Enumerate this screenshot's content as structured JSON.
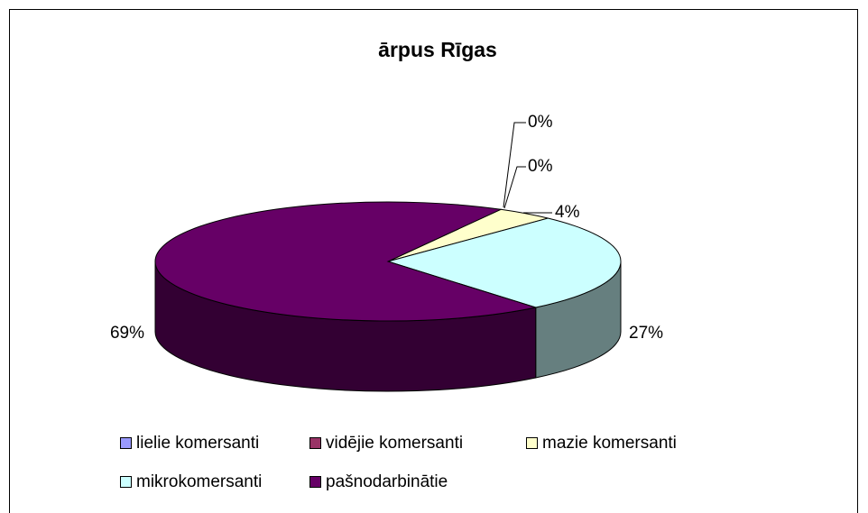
{
  "chart_data": {
    "type": "pie",
    "title": "ārpus Rīgas",
    "categories": [
      "lielie komersanti",
      "vidējie komersanti",
      "mazie komersanti",
      "mikrokomersanti",
      "pašnodarbinātie"
    ],
    "values": [
      0,
      0,
      4,
      27,
      69
    ],
    "value_labels": [
      "0%",
      "0%",
      "4%",
      "27%",
      "69%"
    ],
    "colors": [
      "#9999ff",
      "#993366",
      "#ffffcc",
      "#ccffff",
      "#660066"
    ],
    "legend": "bottom"
  }
}
